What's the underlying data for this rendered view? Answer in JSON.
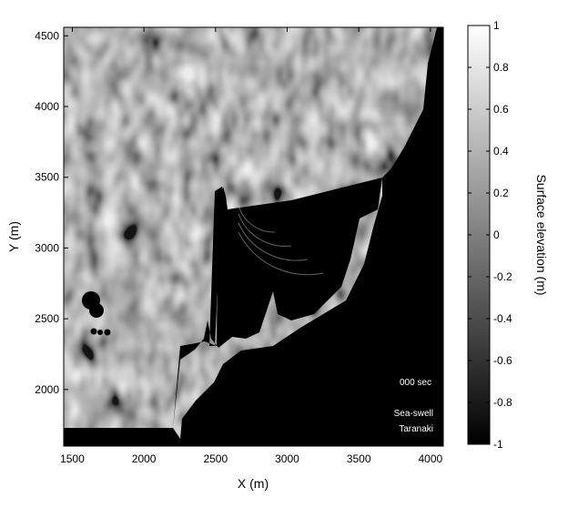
{
  "chart_data": {
    "type": "heatmap",
    "title": "",
    "xlabel": "X (m)",
    "ylabel": "Y (m)",
    "xlim": [
      1440,
      4090
    ],
    "ylim": [
      1600,
      4560
    ],
    "xticks": [
      1500,
      2000,
      2500,
      3000,
      3500,
      4000
    ],
    "yticks": [
      2000,
      2500,
      3000,
      3500,
      4000,
      4500
    ],
    "colormap": "grayscale",
    "colorbar": {
      "label": "Surface elevation (m)",
      "range": [
        -1,
        1
      ],
      "ticks": [
        1,
        0.8,
        0.6,
        0.4,
        0.2,
        0,
        -0.2,
        -0.4,
        -0.6,
        -0.8,
        -1
      ]
    },
    "annotations": {
      "time": "000 sec",
      "line1": "Sea-swell",
      "line2": "Taranaki"
    },
    "land_color": "#000000"
  }
}
